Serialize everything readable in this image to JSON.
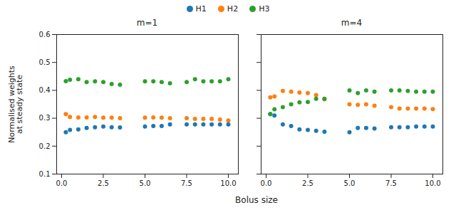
{
  "chart_data": [
    {
      "type": "scatter",
      "title": "m=1",
      "xlabel": "Bolus size",
      "ylabel": "Normalised weights\nat steady state",
      "legend": "top",
      "grid": false,
      "xlim": [
        -0.3,
        10.6
      ],
      "xticks": [
        {
          "value": 0.0,
          "label": "0.0"
        },
        2.5,
        {
          "value": 5.0,
          "label": "5.0"
        },
        7.5,
        {
          "value": 10.0,
          "label": "10.0"
        }
      ],
      "ylim": [
        0.1,
        0.6
      ],
      "yticks": [
        0.1,
        0.2,
        0.3,
        0.4,
        0.5,
        0.6
      ],
      "x": [
        0.25,
        0.5,
        1.0,
        1.5,
        2.0,
        2.5,
        3.0,
        3.5,
        5.0,
        5.5,
        6.0,
        6.5,
        7.5,
        8.0,
        8.5,
        9.0,
        9.5,
        10.0
      ],
      "series": [
        {
          "name": "H1",
          "color": "#1f77b4",
          "values": [
            0.25,
            0.258,
            0.26,
            0.265,
            0.268,
            0.27,
            0.268,
            0.267,
            0.27,
            0.272,
            0.272,
            0.278,
            0.278,
            0.278,
            0.278,
            0.278,
            0.278,
            0.278
          ]
        },
        {
          "name": "H2",
          "color": "#ff7f0e",
          "values": [
            0.315,
            0.305,
            0.303,
            0.303,
            0.305,
            0.302,
            0.302,
            0.3,
            0.302,
            0.303,
            0.302,
            0.3,
            0.3,
            0.298,
            0.298,
            0.298,
            0.295,
            0.292
          ]
        },
        {
          "name": "H3",
          "color": "#2ca02c",
          "values": [
            0.433,
            0.438,
            0.44,
            0.43,
            0.432,
            0.43,
            0.423,
            0.42,
            0.432,
            0.432,
            0.43,
            0.425,
            0.43,
            0.44,
            0.432,
            0.432,
            0.432,
            0.44
          ]
        }
      ]
    },
    {
      "type": "scatter",
      "title": "m=4",
      "grid": false,
      "tick_labels": "x",
      "xlim": [
        -0.3,
        10.6
      ],
      "xticks": [
        {
          "value": 0.0,
          "label": "0.0"
        },
        2.5,
        {
          "value": 5.0,
          "label": "5.0"
        },
        7.5,
        {
          "value": 10.0,
          "label": "10.0"
        }
      ],
      "ylim": [
        0.1,
        0.6
      ],
      "yticks": [
        0.1,
        0.2,
        0.3,
        0.4,
        0.5,
        0.6
      ],
      "x": [
        0.25,
        0.5,
        1.0,
        1.5,
        2.0,
        2.5,
        3.0,
        3.5,
        5.0,
        5.5,
        6.0,
        6.5,
        7.5,
        8.0,
        8.5,
        9.0,
        9.5,
        10.0
      ],
      "series": [
        {
          "name": "H1",
          "color": "#1f77b4",
          "values": [
            0.315,
            0.31,
            0.278,
            0.272,
            0.26,
            0.258,
            0.255,
            0.252,
            0.25,
            0.265,
            0.265,
            0.263,
            0.268,
            0.268,
            0.268,
            0.27,
            0.27,
            0.27
          ]
        },
        {
          "name": "H2",
          "color": "#ff7f0e",
          "values": [
            0.375,
            0.378,
            0.398,
            0.395,
            0.392,
            0.39,
            0.383,
            0.368,
            0.35,
            0.348,
            0.35,
            0.345,
            0.34,
            0.335,
            0.335,
            0.335,
            0.335,
            0.333
          ]
        },
        {
          "name": "H3",
          "color": "#2ca02c",
          "values": [
            0.315,
            0.332,
            0.34,
            0.35,
            0.357,
            0.358,
            0.37,
            0.37,
            0.4,
            0.39,
            0.4,
            0.395,
            0.4,
            0.4,
            0.398,
            0.395,
            0.395,
            0.395
          ]
        }
      ]
    }
  ]
}
